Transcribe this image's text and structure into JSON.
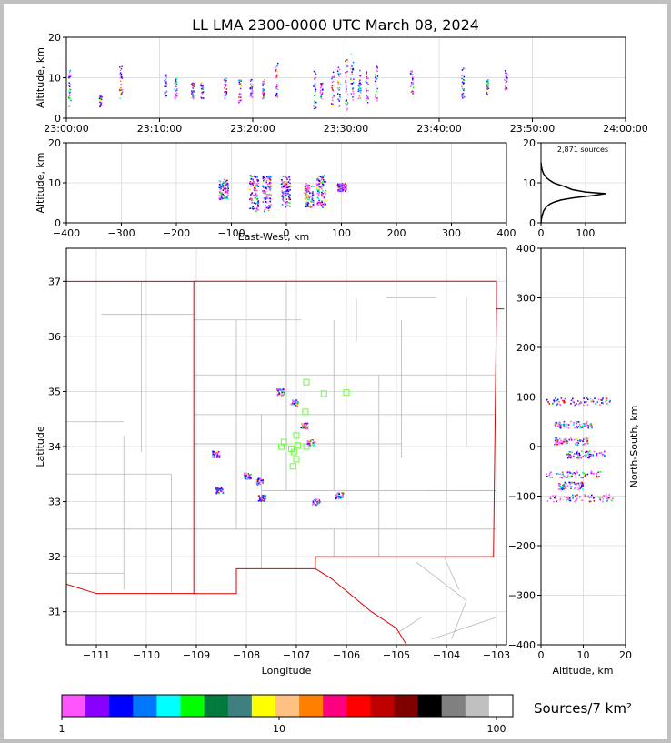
{
  "chart_data": [
    {
      "panel": "altitude-vs-time",
      "type": "scatter",
      "title": "LL LMA 2300-0000 UTC March 08, 2024",
      "ylabel": "Altitude, km",
      "ylim": [
        0,
        20
      ],
      "yticks": [
        "0",
        "10",
        "20"
      ],
      "xticks": [
        "23:00:00",
        "23:10:00",
        "23:20:00",
        "23:30:00",
        "23:40:00",
        "23:50:00",
        "24:00:00"
      ],
      "xlim_minutes": [
        0,
        60
      ],
      "clusters": [
        {
          "t": 0.3,
          "alt": [
            3,
            12
          ]
        },
        {
          "t": 3.6,
          "alt": [
            3,
            6
          ]
        },
        {
          "t": 5.8,
          "alt": [
            4,
            13
          ]
        },
        {
          "t": 10.6,
          "alt": [
            5,
            11
          ]
        },
        {
          "t": 11.7,
          "alt": [
            5,
            10
          ]
        },
        {
          "t": 13.5,
          "alt": [
            5,
            9
          ]
        },
        {
          "t": 14.5,
          "alt": [
            5,
            9
          ]
        },
        {
          "t": 17.0,
          "alt": [
            5,
            10
          ]
        },
        {
          "t": 18.6,
          "alt": [
            4,
            10
          ]
        },
        {
          "t": 19.8,
          "alt": [
            5,
            10
          ]
        },
        {
          "t": 21.1,
          "alt": [
            5,
            10
          ]
        },
        {
          "t": 22.5,
          "alt": [
            5,
            14
          ]
        },
        {
          "t": 26.6,
          "alt": [
            2,
            12
          ]
        },
        {
          "t": 27.3,
          "alt": [
            5,
            9
          ]
        },
        {
          "t": 28.5,
          "alt": [
            3,
            12
          ]
        },
        {
          "t": 29.2,
          "alt": [
            3,
            13
          ]
        },
        {
          "t": 30.0,
          "alt": [
            2,
            15
          ]
        },
        {
          "t": 30.6,
          "alt": [
            4,
            16
          ]
        },
        {
          "t": 31.4,
          "alt": [
            5,
            12
          ]
        },
        {
          "t": 32.2,
          "alt": [
            4,
            12
          ]
        },
        {
          "t": 33.2,
          "alt": [
            4,
            13
          ]
        },
        {
          "t": 37.0,
          "alt": [
            6,
            12
          ]
        },
        {
          "t": 42.5,
          "alt": [
            5,
            13
          ]
        },
        {
          "t": 45.1,
          "alt": [
            6,
            10
          ]
        },
        {
          "t": 47.1,
          "alt": [
            7,
            12
          ]
        }
      ]
    },
    {
      "panel": "altitude-vs-east-west",
      "type": "scatter",
      "xlabel": "East-West, km",
      "ylabel": "Altitude, km",
      "xlim": [
        -400,
        400
      ],
      "ylim": [
        0,
        20
      ],
      "xticks": [
        "−400",
        "−300",
        "−200",
        "−100",
        "0",
        "100",
        "200",
        "300",
        "400"
      ],
      "yticks": [
        "0",
        "10",
        "20"
      ],
      "clusters": [
        {
          "x": -115,
          "alt": [
            6,
            11
          ]
        },
        {
          "x": -60,
          "alt": [
            3,
            12
          ]
        },
        {
          "x": -37,
          "alt": [
            3,
            12
          ]
        },
        {
          "x": -2,
          "alt": [
            4,
            12
          ]
        },
        {
          "x": 40,
          "alt": [
            4,
            10
          ]
        },
        {
          "x": 62,
          "alt": [
            4,
            12
          ]
        },
        {
          "x": 100,
          "alt": [
            8,
            10
          ]
        }
      ]
    },
    {
      "panel": "altitude-histogram",
      "type": "line",
      "annotation": "2,871 sources",
      "xticks": [
        "0",
        "100"
      ],
      "yticks": [
        "0",
        "10",
        "20"
      ],
      "xlim": [
        0,
        190
      ],
      "ylim": [
        0,
        20
      ],
      "profile": [
        [
          0,
          0
        ],
        [
          1,
          1
        ],
        [
          3,
          2
        ],
        [
          6,
          3
        ],
        [
          12,
          4
        ],
        [
          20,
          4.7
        ],
        [
          30,
          5.2
        ],
        [
          45,
          5.7
        ],
        [
          70,
          6.2
        ],
        [
          115,
          6.8
        ],
        [
          145,
          7.3
        ],
        [
          100,
          7.7
        ],
        [
          70,
          8.3
        ],
        [
          55,
          9
        ],
        [
          30,
          9.9
        ],
        [
          20,
          10.6
        ],
        [
          12,
          11.3
        ],
        [
          6,
          12.2
        ],
        [
          3,
          13
        ],
        [
          1,
          14
        ],
        [
          0,
          15
        ]
      ]
    },
    {
      "panel": "plan-view-map",
      "type": "scatter",
      "xlabel": "Longitude",
      "ylabel": "Latitude",
      "xlim": [
        -111.6,
        -102.8
      ],
      "ylim": [
        30.4,
        37.6
      ],
      "xticks": [
        "−111",
        "−110",
        "−109",
        "−108",
        "−107",
        "−106",
        "−105",
        "−104",
        "−103"
      ],
      "yticks": [
        "31",
        "32",
        "33",
        "34",
        "35",
        "36",
        "37"
      ],
      "stations": [
        [
          -106.8,
          35.17
        ],
        [
          -106.45,
          34.96
        ],
        [
          -106.0,
          34.98
        ],
        [
          -106.82,
          34.63
        ],
        [
          -107.0,
          34.2
        ],
        [
          -107.25,
          34.08
        ],
        [
          -106.97,
          34.02
        ],
        [
          -106.8,
          34.0
        ],
        [
          -107.1,
          33.96
        ],
        [
          -107.3,
          34.0
        ],
        [
          -107.05,
          33.9
        ],
        [
          -107.0,
          33.77
        ],
        [
          -107.07,
          33.64
        ]
      ],
      "clusters": [
        {
          "lon": -107.33,
          "lat": 35.0
        },
        {
          "lon": -107.05,
          "lat": 34.8
        },
        {
          "lon": -106.85,
          "lat": 34.38
        },
        {
          "lon": -106.72,
          "lat": 34.08
        },
        {
          "lon": -108.62,
          "lat": 33.87
        },
        {
          "lon": -107.98,
          "lat": 33.47
        },
        {
          "lon": -107.75,
          "lat": 33.38
        },
        {
          "lon": -107.7,
          "lat": 33.07
        },
        {
          "lon": -106.62,
          "lat": 33.0
        },
        {
          "lon": -106.15,
          "lat": 33.12
        },
        {
          "lon": -108.55,
          "lat": 33.22
        }
      ]
    },
    {
      "panel": "north-south-vs-altitude",
      "type": "scatter",
      "xlabel": "Altitude, km",
      "ylabel": "North-South, km",
      "xlim": [
        0,
        20
      ],
      "ylim": [
        -400,
        400
      ],
      "xticks": [
        "0",
        "10",
        "20"
      ],
      "yticks": [
        "−400",
        "−300",
        "−200",
        "−100",
        "0",
        "100",
        "200",
        "300",
        "400"
      ],
      "clusters": [
        {
          "ns": 92,
          "alt": [
            1,
            17
          ]
        },
        {
          "ns": 45,
          "alt": [
            3,
            12
          ]
        },
        {
          "ns": 12,
          "alt": [
            3,
            11
          ]
        },
        {
          "ns": -15,
          "alt": [
            6,
            15
          ]
        },
        {
          "ns": -55,
          "alt": [
            1,
            14
          ]
        },
        {
          "ns": -78,
          "alt": [
            4,
            10
          ]
        },
        {
          "ns": -103,
          "alt": [
            1,
            17
          ]
        }
      ]
    },
    {
      "panel": "colorbar",
      "type": "heatmap",
      "label": "Sources/7 km²",
      "ticks": [
        "1",
        "10",
        "100"
      ],
      "colors": [
        "#ff55ff",
        "#8800ff",
        "#0000ff",
        "#0077ff",
        "#00ffff",
        "#00ff00",
        "#007a3d",
        "#3f7f7f",
        "#ffff00",
        "#ffc080",
        "#ff8000",
        "#ff0080",
        "#ff0000",
        "#c00000",
        "#800000",
        "#000000",
        "#808080",
        "#c0c0c0",
        "#ffffff"
      ]
    }
  ]
}
